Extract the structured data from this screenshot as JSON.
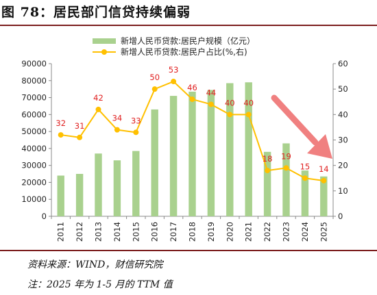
{
  "title": "图 78：居民部门信贷持续偏弱",
  "source": "资料来源：WIND，财信研究院",
  "remark": "注：2025 年为 1-5 月的 TTM 值",
  "chart_data": {
    "type": "bar+line",
    "categories": [
      "2011",
      "2012",
      "2013",
      "2014",
      "2015",
      "2016",
      "2017",
      "2018",
      "2019",
      "2020",
      "2021",
      "2022",
      "2023",
      "2024",
      "2025"
    ],
    "series": [
      {
        "name": "新增人民币贷款:居民户规模（亿元）",
        "type": "bar",
        "axis": "left",
        "color": "#a9d18e",
        "values": [
          24000,
          25000,
          37000,
          33000,
          38500,
          63000,
          71000,
          73500,
          74500,
          78500,
          79000,
          38000,
          43000,
          27000,
          23500
        ]
      },
      {
        "name": "新增人民币贷款:居民户占比(%,右)",
        "type": "line",
        "axis": "right",
        "color": "#ffc000",
        "values": [
          32,
          31,
          42,
          34,
          33,
          50,
          53,
          46,
          44,
          40,
          40,
          18,
          19,
          15,
          14
        ]
      }
    ],
    "y_left": {
      "min": 0,
      "max": 90000,
      "ticks": [
        "0",
        "10000",
        "20000",
        "30000",
        "40000",
        "50000",
        "60000",
        "70000",
        "80000",
        "90000"
      ]
    },
    "y_right": {
      "min": 0,
      "max": 60,
      "ticks": [
        "0",
        "10",
        "20",
        "30",
        "40",
        "50",
        "60"
      ]
    },
    "data_labels": [
      "32",
      "31",
      "42",
      "34",
      "33",
      "50",
      "53",
      "46",
      "44",
      "40",
      "40",
      "18",
      "19",
      "15",
      "14"
    ],
    "data_label_color": "#e02020",
    "legend_position": "top-center",
    "grid": false,
    "annotation": {
      "type": "arrow",
      "direction": "down-right",
      "color": "#f08080"
    }
  }
}
